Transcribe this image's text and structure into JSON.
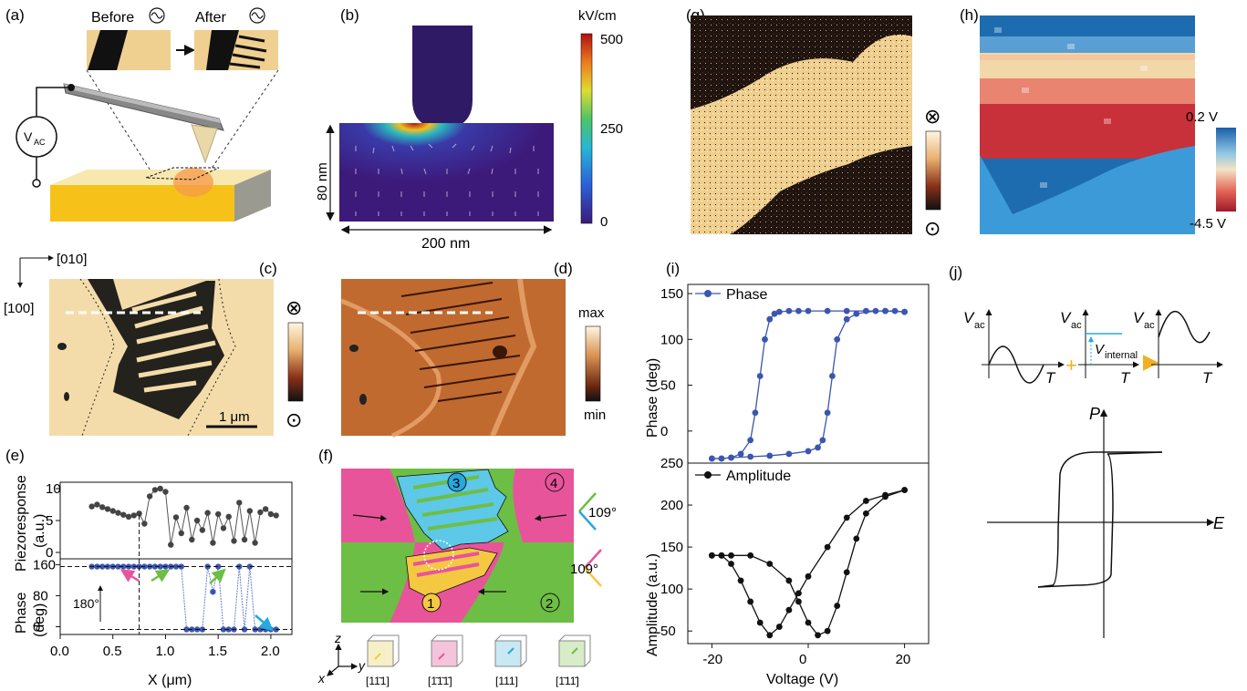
{
  "panels": {
    "a": {
      "label": "(a)",
      "before": "Before",
      "after": "After",
      "source": "V",
      "source_sub": "AC"
    },
    "b": {
      "label": "(b)",
      "unit": "kV/cm",
      "colorbar_ticks": [
        "500",
        "250",
        "0"
      ],
      "height_label": "80 nm",
      "width_label": "200 nm"
    },
    "c": {
      "label": "(c)",
      "dir_x": "[010]",
      "dir_y": "[100]",
      "scalebar": "1 μm",
      "into": "⊗",
      "out": "⊙"
    },
    "d": {
      "label": "(d)",
      "max": "max",
      "min": "min"
    },
    "e": {
      "label": "(e)",
      "top_ylabel": "Piezoresponse",
      "top_yunit": "(a.u.)",
      "bottom_ylabel": "Phase",
      "bottom_yunit": "(deg)",
      "xlabel": "X (μm)",
      "angle": "180°"
    },
    "f": {
      "label": "(f)",
      "domains": [
        "1",
        "2",
        "3",
        "4"
      ],
      "angle_top": "109°",
      "angle_bottom": "109°",
      "axes": {
        "z": "z",
        "x": "x",
        "y": "y"
      },
      "cube_labels": [
        "[11̄1]",
        "[1̄1̄1̄]",
        "[111]",
        "[1̄11̄]"
      ]
    },
    "g": {
      "label": "(g)",
      "into": "⊗",
      "out": "⊙"
    },
    "h": {
      "label": "(h)",
      "high": "0.2 V",
      "low": "-4.5 V"
    },
    "i": {
      "label": "(i)",
      "legend_phase": "Phase",
      "legend_amp": "Amplitude",
      "ylabel_top": "Phase (deg)",
      "ylabel_bottom": "Amplitude (a.u.)",
      "xlabel": "Voltage (V)"
    },
    "j": {
      "label": "(j)",
      "vac": "V",
      "vac_sub": "ac",
      "t": "T",
      "vint": "V",
      "vint_sub": "internal",
      "p": "P",
      "e": "E"
    }
  },
  "colors": {
    "pink": "#e8549a",
    "green": "#6dbe45",
    "cyan": "#5ec8e8",
    "yellow": "#f5c842",
    "phase_blue": "#3a56b0",
    "tan": "#f2d49a"
  },
  "chart_data": [
    {
      "type": "scatter",
      "title": "",
      "xlabel": "X (μm)",
      "ylabel": "Piezoresponse (a.u.)",
      "xlim": [
        0.0,
        2.2
      ],
      "ylim": [
        -1,
        11
      ],
      "xticks": [
        "0.0",
        "0.5",
        "1.0",
        "1.5",
        "2.0"
      ],
      "yticks": [
        "0",
        "5",
        "10"
      ],
      "x": [
        0.3,
        0.35,
        0.4,
        0.45,
        0.5,
        0.55,
        0.6,
        0.65,
        0.7,
        0.75,
        0.8,
        0.85,
        0.9,
        0.95,
        1.0,
        1.05,
        1.1,
        1.15,
        1.2,
        1.25,
        1.3,
        1.35,
        1.4,
        1.45,
        1.5,
        1.55,
        1.6,
        1.65,
        1.7,
        1.75,
        1.8,
        1.85,
        1.9,
        1.95,
        2.0,
        2.05
      ],
      "y": [
        7.2,
        7.5,
        7.1,
        6.8,
        6.5,
        6.2,
        5.9,
        5.6,
        5.8,
        6.1,
        4.5,
        8.8,
        9.8,
        10.0,
        9.5,
        1.2,
        5.5,
        3.0,
        7.0,
        2.0,
        5.0,
        3.5,
        6.2,
        1.5,
        6.0,
        3.8,
        5.6,
        1.8,
        7.8,
        2.0,
        6.5,
        1.5,
        6.3,
        6.8,
        6.0,
        5.8
      ]
    },
    {
      "type": "line",
      "title": "",
      "xlabel": "X (μm)",
      "ylabel": "Phase (deg)",
      "xlim": [
        0.0,
        2.2
      ],
      "ylim": [
        -20,
        175
      ],
      "xticks": [
        "0.0",
        "0.5",
        "1.0",
        "1.5",
        "2.0"
      ],
      "yticks": [
        "0",
        "80",
        "160"
      ],
      "x": [
        0.3,
        0.35,
        0.4,
        0.45,
        0.5,
        0.55,
        0.6,
        0.65,
        0.7,
        0.75,
        0.8,
        0.85,
        0.9,
        0.95,
        1.0,
        1.05,
        1.1,
        1.15,
        1.2,
        1.25,
        1.3,
        1.35,
        1.4,
        1.45,
        1.5,
        1.55,
        1.6,
        1.65,
        1.7,
        1.75,
        1.8,
        1.85,
        1.9,
        1.95,
        2.0,
        2.05
      ],
      "y": [
        155,
        155,
        155,
        155,
        155,
        155,
        155,
        155,
        155,
        155,
        155,
        155,
        155,
        155,
        155,
        155,
        155,
        155,
        -7,
        -7,
        -7,
        -7,
        155,
        90,
        155,
        -7,
        -7,
        -7,
        155,
        -7,
        155,
        -7,
        -7,
        -7,
        -7,
        -7
      ]
    },
    {
      "type": "line",
      "title": "",
      "xlabel": "Voltage (V)",
      "ylabel": "Phase (deg)",
      "xlim": [
        -25,
        25
      ],
      "ylim": [
        -35,
        160
      ],
      "yticks": [
        "0",
        "50",
        "100",
        "150"
      ],
      "series": [
        {
          "name": "Phase",
          "x": [
            -20,
            -18,
            -16,
            -14,
            -12,
            -11,
            -10,
            -9,
            -8,
            -7,
            -6,
            -4,
            -2,
            0,
            4,
            8,
            12,
            16,
            20
          ],
          "y": [
            -30,
            -30,
            -29,
            -25,
            -10,
            20,
            60,
            100,
            122,
            128,
            130,
            131,
            131,
            131,
            131,
            131,
            131,
            131,
            130
          ]
        },
        {
          "name": "Phase",
          "x": [
            20,
            18,
            16,
            14,
            10,
            8,
            6,
            5,
            4,
            3,
            2,
            0,
            -4,
            -8,
            -12,
            -16,
            -18,
            -20
          ],
          "y": [
            130,
            131,
            131,
            131,
            128,
            122,
            100,
            60,
            20,
            -10,
            -18,
            -22,
            -25,
            -27,
            -28,
            -29,
            -30,
            -30
          ]
        }
      ]
    },
    {
      "type": "line",
      "title": "",
      "xlabel": "Voltage (V)",
      "ylabel": "Amplitude (a.u.)",
      "xlim": [
        -25,
        25
      ],
      "ylim": [
        35,
        250
      ],
      "xticks": [
        "-20",
        "0",
        "20"
      ],
      "yticks": [
        "50",
        "100",
        "150",
        "200",
        "250"
      ],
      "series": [
        {
          "name": "Amplitude",
          "x": [
            -20,
            -18,
            -16,
            -14,
            -12,
            -10,
            -8,
            -6,
            -4,
            -2,
            0,
            4,
            8,
            12,
            16,
            20
          ],
          "y": [
            140,
            140,
            130,
            110,
            85,
            60,
            45,
            55,
            75,
            95,
            115,
            150,
            185,
            205,
            212,
            218
          ]
        },
        {
          "name": "Amplitude",
          "x": [
            20,
            16,
            12,
            10,
            8,
            6,
            4,
            2,
            0,
            -2,
            -4,
            -8,
            -12,
            -16,
            -18,
            -20
          ],
          "y": [
            218,
            210,
            190,
            160,
            120,
            80,
            50,
            45,
            60,
            85,
            110,
            130,
            140,
            140,
            140,
            140
          ]
        }
      ]
    }
  ]
}
